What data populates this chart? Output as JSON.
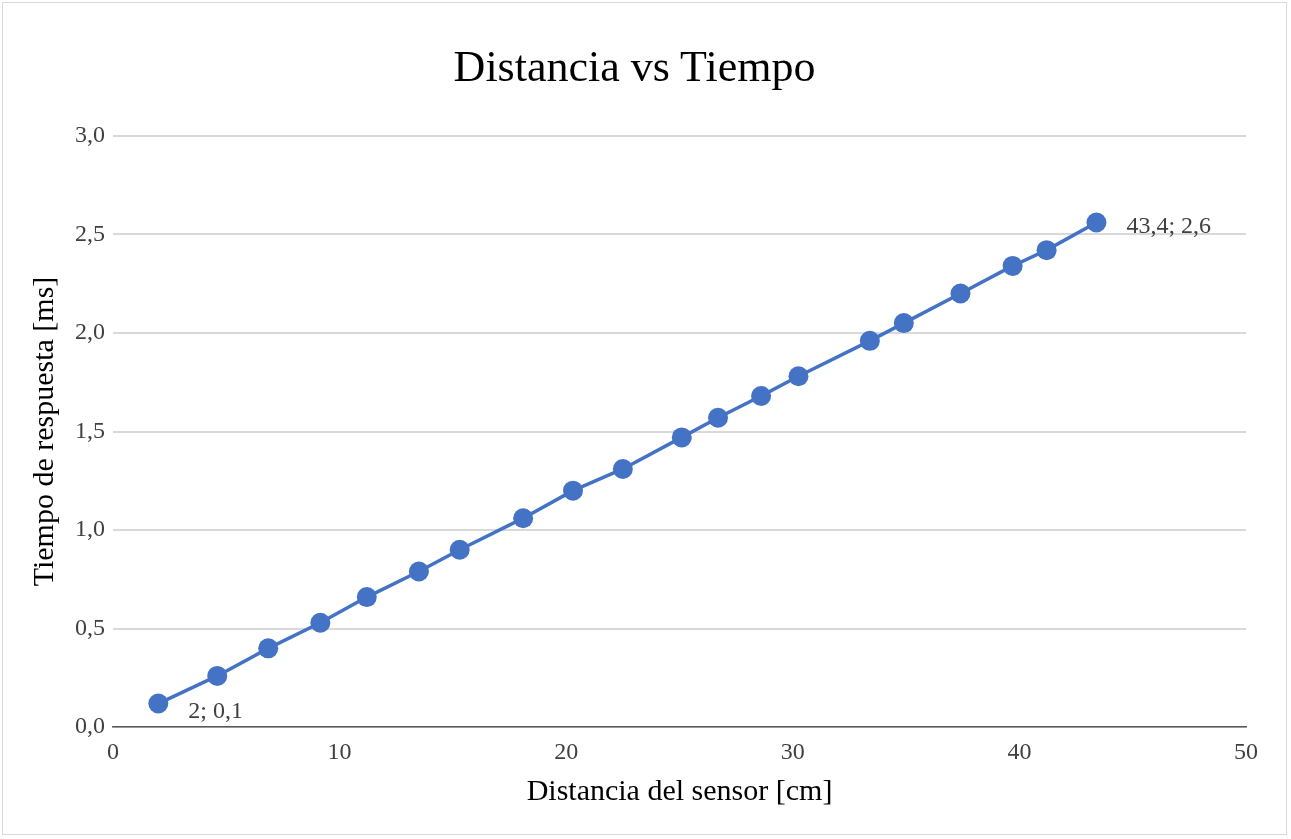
{
  "chart_data": {
    "type": "line",
    "title": "Distancia vs Tiempo",
    "xlabel": "Distancia del sensor [cm]",
    "ylabel": "Tiempo de respuesta [ms]",
    "x": [
      2,
      4.6,
      6.85,
      9.15,
      11.2,
      13.5,
      15.3,
      18.1,
      20.3,
      22.5,
      25.1,
      26.7,
      28.6,
      30.25,
      33.4,
      34.9,
      37.4,
      39.7,
      41.2,
      43.4
    ],
    "series": [
      {
        "color": "#4472c4",
        "values": [
          0.12,
          0.26,
          0.4,
          0.53,
          0.66,
          0.79,
          0.9,
          1.06,
          1.2,
          1.31,
          1.47,
          1.57,
          1.68,
          1.78,
          1.96,
          2.05,
          2.2,
          2.34,
          2.42,
          2.56
        ],
        "value_labels": [
          "2; 0,1",
          null,
          null,
          null,
          null,
          null,
          null,
          null,
          null,
          null,
          null,
          null,
          null,
          null,
          null,
          null,
          null,
          null,
          null,
          "43,4; 2,6"
        ]
      }
    ],
    "xlim": [
      0,
      50
    ],
    "xticks": [
      0,
      10,
      20,
      30,
      40,
      50
    ],
    "ylim": [
      0,
      3
    ],
    "yticks": [
      {
        "value": 0,
        "label": "0,0"
      },
      {
        "value": 0.5,
        "label": "0,5"
      },
      {
        "value": 1,
        "label": "1,0"
      },
      {
        "value": 1.5,
        "label": "1,5"
      },
      {
        "value": 2,
        "label": "2,0"
      },
      {
        "value": 2.5,
        "label": "2,5"
      },
      {
        "value": 3,
        "label": "3,0"
      }
    ],
    "grid": "y",
    "legend": false,
    "marker": "circle",
    "line_style": "solid"
  }
}
